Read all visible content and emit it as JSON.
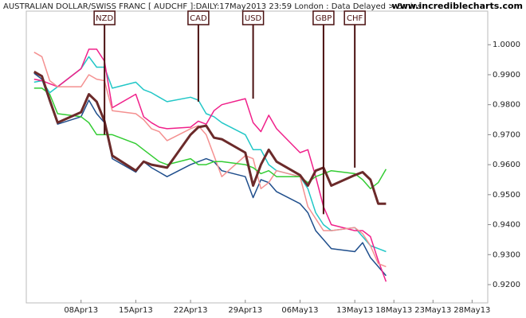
{
  "chart_data": {
    "type": "line",
    "title": "AUSTRALIAN DOLLAR/SWISS FRANC [ AUDCHF ]:DAILY:17May2013 23:59 London : Data Delayed > 5mins",
    "subtitle": "www.incrediblecharts.com",
    "x": [
      "2013-04-02",
      "2013-04-03",
      "2013-04-04",
      "2013-04-05",
      "2013-04-08",
      "2013-04-09",
      "2013-04-10",
      "2013-04-11",
      "2013-04-12",
      "2013-04-15",
      "2013-04-16",
      "2013-04-17",
      "2013-04-18",
      "2013-04-19",
      "2013-04-22",
      "2013-04-23",
      "2013-04-24",
      "2013-04-25",
      "2013-04-26",
      "2013-04-29",
      "2013-04-30",
      "2013-05-01",
      "2013-05-02",
      "2013-05-03",
      "2013-05-06",
      "2013-05-07",
      "2013-05-08",
      "2013-05-09",
      "2013-05-10",
      "2013-05-13",
      "2013-05-14",
      "2013-05-15",
      "2013-05-16",
      "2013-05-17"
    ],
    "series": [
      {
        "color": "#1f4e8c",
        "values": [
          0.9905,
          0.9885,
          0.981,
          0.9735,
          0.976,
          0.9815,
          0.977,
          0.974,
          0.962,
          0.9575,
          0.961,
          0.959,
          0.9575,
          0.956,
          0.96,
          0.961,
          0.962,
          0.961,
          0.958,
          0.956,
          0.949,
          0.955,
          0.954,
          0.951,
          0.947,
          0.944,
          0.938,
          0.935,
          0.932,
          0.931,
          0.934,
          0.929,
          0.926,
          0.923
        ]
      },
      {
        "color": "#22c7c7",
        "values": [
          0.9875,
          0.988,
          0.984,
          0.986,
          0.992,
          0.996,
          0.9925,
          0.9925,
          0.9855,
          0.9875,
          0.985,
          0.984,
          0.9825,
          0.981,
          0.9825,
          0.9815,
          0.977,
          0.976,
          0.974,
          0.97,
          0.965,
          0.965,
          0.96,
          0.958,
          0.956,
          0.952,
          0.944,
          0.94,
          0.938,
          0.939,
          0.936,
          0.933,
          0.932,
          0.931
        ]
      },
      {
        "color": "#f0208a",
        "values": [
          0.9885,
          0.988,
          0.987,
          0.986,
          0.992,
          0.9985,
          0.9985,
          0.9945,
          0.979,
          0.9835,
          0.976,
          0.974,
          0.9725,
          0.972,
          0.9725,
          0.9745,
          0.9735,
          0.978,
          0.98,
          0.982,
          0.974,
          0.971,
          0.9765,
          0.972,
          0.964,
          0.965,
          0.956,
          0.946,
          0.94,
          0.938,
          0.938,
          0.936,
          0.928,
          0.921
        ]
      },
      {
        "color": "#f49090",
        "values": [
          0.9975,
          0.996,
          0.988,
          0.986,
          0.986,
          0.99,
          0.9885,
          0.988,
          0.978,
          0.977,
          0.975,
          0.972,
          0.971,
          0.968,
          0.972,
          0.973,
          0.97,
          0.963,
          0.956,
          0.963,
          0.962,
          0.952,
          0.954,
          0.958,
          0.956,
          0.946,
          0.942,
          0.938,
          0.938,
          0.939,
          0.937,
          0.933,
          0.927,
          0.926
        ]
      },
      {
        "color": "#33cc33",
        "values": [
          0.9855,
          0.9855,
          0.9835,
          0.977,
          0.976,
          0.974,
          0.97,
          0.97,
          0.97,
          0.967,
          0.965,
          0.963,
          0.961,
          0.96,
          0.962,
          0.96,
          0.96,
          0.961,
          0.961,
          0.96,
          0.959,
          0.957,
          0.958,
          0.956,
          0.956,
          0.954,
          0.956,
          0.957,
          0.958,
          0.957,
          0.955,
          0.952,
          0.954,
          0.9585
        ]
      },
      {
        "color": "#6b2a2a",
        "values": [
          0.991,
          0.9895,
          0.9815,
          0.974,
          0.9775,
          0.9835,
          0.981,
          0.9745,
          0.963,
          0.958,
          0.961,
          0.96,
          0.9595,
          0.959,
          0.97,
          0.9725,
          0.973,
          0.969,
          0.9685,
          0.964,
          0.953,
          0.96,
          0.965,
          0.961,
          0.9565,
          0.953,
          0.958,
          0.959,
          0.953,
          0.9565,
          0.9575,
          0.955,
          0.947,
          0.947
        ]
      }
    ],
    "annotations": [
      {
        "label": "NZD",
        "x": "2013-04-11",
        "y": 0.97
      },
      {
        "label": "CAD",
        "x": "2013-04-23",
        "y": 0.981
      },
      {
        "label": "USD",
        "x": "2013-04-30",
        "y": 0.982
      },
      {
        "label": "GBP",
        "x": "2013-05-09",
        "y": 0.9435
      },
      {
        "label": "CHF",
        "x": "2013-05-13",
        "y": 0.959
      }
    ],
    "xlim": [
      "2013-04-01",
      "2013-05-30"
    ],
    "xticks": [
      {
        "value": "2013-04-08",
        "label": "08Apr13"
      },
      {
        "value": "2013-04-15",
        "label": "15Apr13"
      },
      {
        "value": "2013-04-22",
        "label": "22Apr13"
      },
      {
        "value": "2013-04-29",
        "label": "29Apr13"
      },
      {
        "value": "2013-05-06",
        "label": "06May13"
      },
      {
        "value": "2013-05-13",
        "label": "13May13"
      },
      {
        "value": "2013-05-18",
        "label": "18May13"
      },
      {
        "value": "2013-05-23",
        "label": "23May13"
      },
      {
        "value": "2013-05-28",
        "label": "28May13"
      }
    ],
    "ylim": [
      0.9139,
      1.0112
    ],
    "yticks": [
      {
        "value": 0.92,
        "label": "0.9200"
      },
      {
        "value": 0.93,
        "label": "0.9300"
      },
      {
        "value": 0.94,
        "label": "0.9400"
      },
      {
        "value": 0.95,
        "label": "0.9500"
      },
      {
        "value": 0.96,
        "label": "0.9600"
      },
      {
        "value": 0.97,
        "label": "0.9700"
      },
      {
        "value": 0.98,
        "label": "0.9800"
      },
      {
        "value": 0.99,
        "label": "0.9900"
      },
      {
        "value": 1.0,
        "label": "1.0000"
      }
    ],
    "grid": false
  }
}
